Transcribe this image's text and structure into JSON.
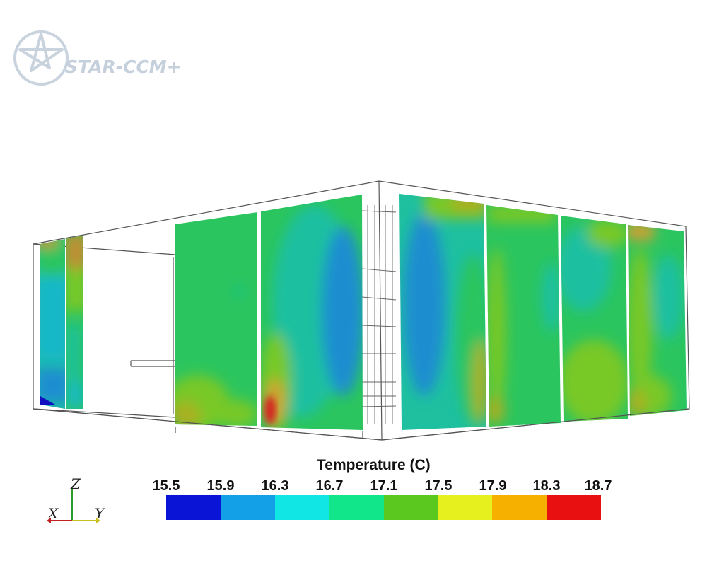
{
  "logo": {
    "text": "STAR-CCM+",
    "name": "star-ccm-logo"
  },
  "legend": {
    "title": "Temperature (C)",
    "ticks": [
      "15.5",
      "15.9",
      "16.3",
      "16.7",
      "17.1",
      "17.5",
      "17.9",
      "18.3",
      "18.7"
    ],
    "colors": [
      "#0a14d6",
      "#14a0e6",
      "#12e6e4",
      "#12e68a",
      "#5ac81e",
      "#e6f01e",
      "#f5b000",
      "#e81010"
    ]
  },
  "axes": {
    "z": "Z",
    "x": "X",
    "y": "Y"
  },
  "palette": {
    "green": "#2bc55f",
    "teal": "#1ec0a0",
    "cyan": "#18b8c8",
    "blue": "#1e8ed0",
    "lime": "#78c828",
    "olive": "#a8b020",
    "orange": "#d0a030",
    "red": "#d42020",
    "deepblue": "#1010c0"
  }
}
